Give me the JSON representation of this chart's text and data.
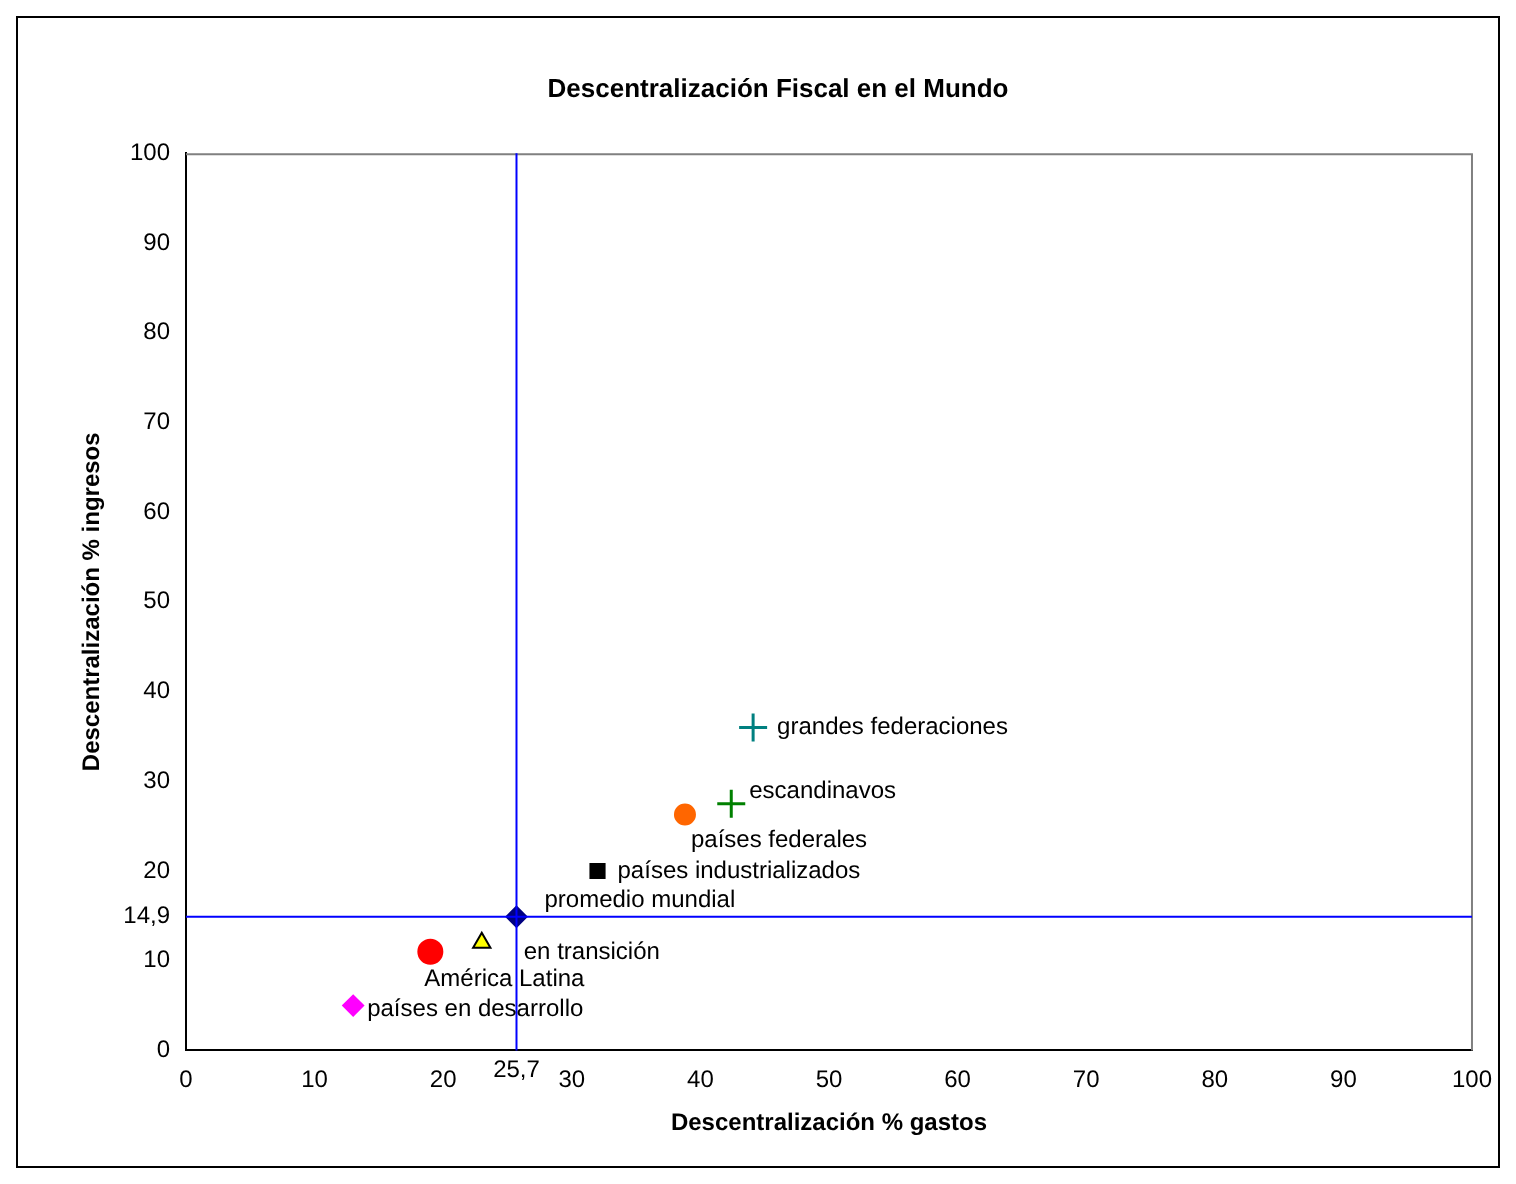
{
  "chart_data": {
    "type": "scatter",
    "title": "Descentralización Fiscal en el Mundo",
    "xlabel": "Descentralización % gastos",
    "ylabel": "Descentralización % ingresos",
    "xlim": [
      0,
      100
    ],
    "xticks": [
      0,
      10,
      20,
      30,
      40,
      50,
      60,
      70,
      80,
      90,
      100
    ],
    "ylim": [
      0,
      100
    ],
    "yticks": [
      0,
      10,
      20,
      30,
      40,
      50,
      60,
      70,
      80,
      90,
      100
    ],
    "grid": false,
    "legend": false,
    "series": [
      {
        "name": "países en desarrollo",
        "color": "#ff00ff",
        "marker": "diamond",
        "x": [
          13.0
        ],
        "values": [
          5.0
        ]
      },
      {
        "name": "América Latina",
        "color": "#ff0000",
        "marker": "circle",
        "x": [
          19.0
        ],
        "values": [
          11.0
        ]
      },
      {
        "name": "en transición",
        "color": "#ffff00",
        "marker": "triangle",
        "x": [
          23.0
        ],
        "values": [
          12.0
        ]
      },
      {
        "name": "promedio mundial",
        "color": "#000080",
        "marker": "diamond",
        "x": [
          25.7
        ],
        "values": [
          14.9
        ]
      },
      {
        "name": "países industrializados",
        "color": "#000000",
        "marker": "square",
        "x": [
          32.0
        ],
        "values": [
          20.0
        ]
      },
      {
        "name": "países federales",
        "color": "#ff6600",
        "marker": "circle",
        "x": [
          38.8
        ],
        "values": [
          26.3
        ]
      },
      {
        "name": "escandinavos",
        "color": "#008000",
        "marker": "cross",
        "x": [
          42.4
        ],
        "values": [
          27.5
        ]
      },
      {
        "name": "grandes federaciones",
        "color": "#008080",
        "marker": "cross",
        "x": [
          44.1
        ],
        "values": [
          36.0
        ]
      }
    ],
    "ref_lines": [
      {
        "axis": "x",
        "value": 25.7,
        "label": "25,7",
        "color": "#0000ff"
      },
      {
        "axis": "y",
        "value": 14.9,
        "label": "14,9",
        "color": "#0000ff"
      }
    ]
  }
}
